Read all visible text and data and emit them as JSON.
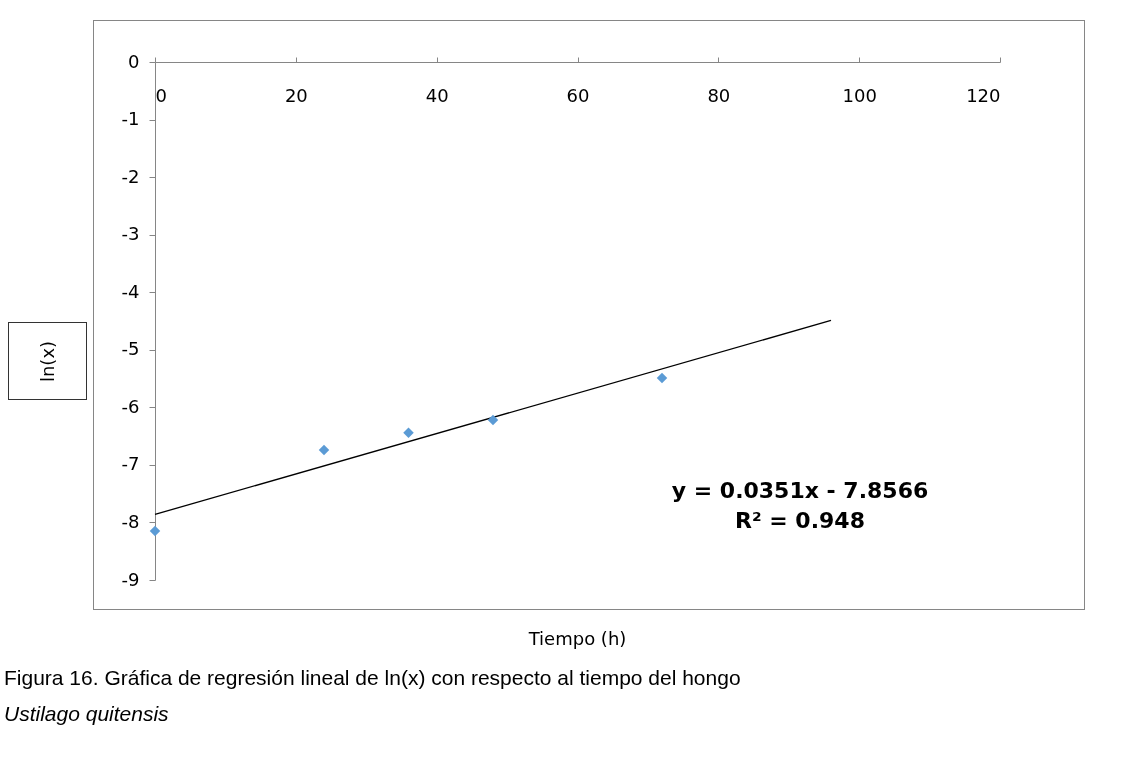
{
  "chart_data": {
    "type": "scatter",
    "xlabel": "Tiempo (h)",
    "ylabel": "ln(x)",
    "xlim": [
      0,
      120
    ],
    "xticks": [
      0,
      20,
      40,
      60,
      80,
      100,
      120
    ],
    "ylim": [
      -9,
      0
    ],
    "yticks": [
      0,
      -1,
      -2,
      -3,
      -4,
      -5,
      -6,
      -7,
      -8,
      -9
    ],
    "series": [
      {
        "type": "scatter",
        "color": "#5b9bd5",
        "marker": "diamond",
        "x": [
          0,
          24,
          36,
          48,
          72
        ],
        "values": [
          -8.15,
          -6.74,
          -6.44,
          -6.22,
          -5.49
        ]
      },
      {
        "type": "line",
        "color": "#000000",
        "line_style": "solid",
        "x": [
          0,
          96
        ],
        "values": [
          -7.86,
          -4.49
        ]
      }
    ],
    "annotations": [
      "y = 0.0351x - 7.8566",
      "R² = 0.948",
      "Figura 16. Gráfica de regresión lineal de ln(x) con respecto al tiempo del hongo",
      "Ustilago quitensis"
    ]
  }
}
